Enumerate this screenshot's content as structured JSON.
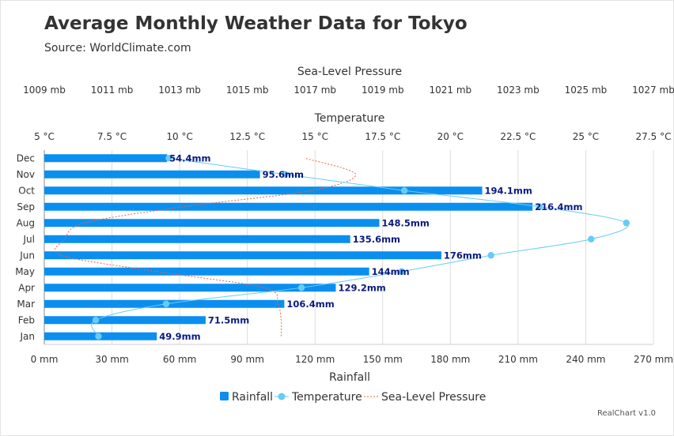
{
  "title": "Average Monthly Weather Data for Tokyo",
  "subtitle": "Source: WorldClimate.com",
  "credit": "RealChart v1.0",
  "colors": {
    "rainfall": "#0a8ff0",
    "temperature": "#66ccf5",
    "pressure": "#f0643c",
    "grid": "#dddddd",
    "axis": "#888888"
  },
  "chart_data": {
    "type": "bar",
    "orientation": "horizontal",
    "categories": [
      "Jan",
      "Feb",
      "Mar",
      "Apr",
      "May",
      "Jun",
      "Jul",
      "Aug",
      "Sep",
      "Oct",
      "Nov",
      "Dec"
    ],
    "series": [
      {
        "name": "Rainfall",
        "type": "bar",
        "axis": "Rainfall",
        "values": [
          49.9,
          71.5,
          106.4,
          129.2,
          144,
          176,
          135.6,
          148.5,
          216.4,
          194.1,
          95.6,
          54.4
        ],
        "labels": [
          "49.9mm",
          "71.5mm",
          "106.4mm",
          "129.2mm",
          "144mm",
          "176mm",
          "135.6mm",
          "148.5mm",
          "216.4mm",
          "194.1mm",
          "95.6mm",
          "54.4mm"
        ]
      },
      {
        "name": "Temperature",
        "type": "spline",
        "axis": "Temperature",
        "values": [
          7.0,
          6.9,
          9.5,
          14.5,
          18.2,
          21.5,
          25.2,
          26.5,
          23.3,
          18.3,
          13.9,
          9.6
        ]
      },
      {
        "name": "Sea-Level Pressure",
        "type": "spline",
        "dashed": true,
        "axis": "Sea-Level Pressure",
        "values": [
          1016,
          1016,
          1015.9,
          1015.5,
          1012.3,
          1009.5,
          1009.6,
          1010.2,
          1013.1,
          1016.9,
          1018.2,
          1016.7
        ]
      }
    ],
    "axes": {
      "rainfall": {
        "title": "Rainfall",
        "range": [
          0,
          270
        ],
        "ticks": [
          0,
          30,
          60,
          90,
          120,
          150,
          180,
          210,
          240,
          270
        ],
        "tick_labels": [
          "0 mm",
          "30 mm",
          "60 mm",
          "90 mm",
          "120 mm",
          "150 mm",
          "180 mm",
          "210 mm",
          "240 mm",
          "270 mm"
        ]
      },
      "temperature": {
        "title": "Temperature",
        "range": [
          5,
          27.5
        ],
        "ticks": [
          5,
          7.5,
          10,
          12.5,
          15,
          17.5,
          20,
          22.5,
          25,
          27.5
        ],
        "tick_labels": [
          "5 °C",
          "7.5 °C",
          "10 °C",
          "12.5 °C",
          "15 °C",
          "17.5 °C",
          "20 °C",
          "22.5 °C",
          "25 °C",
          "27.5 °C"
        ]
      },
      "pressure": {
        "title": "Sea-Level Pressure",
        "range": [
          1009,
          1027
        ],
        "ticks": [
          1009,
          1011,
          1013,
          1015,
          1017,
          1019,
          1021,
          1023,
          1025,
          1027
        ],
        "tick_labels": [
          "1009 mb",
          "1011 mb",
          "1013 mb",
          "1015 mb",
          "1017 mb",
          "1019 mb",
          "1021 mb",
          "1023 mb",
          "1025 mb",
          "1027 mb"
        ]
      }
    },
    "grid": true,
    "legend_position": "bottom"
  }
}
